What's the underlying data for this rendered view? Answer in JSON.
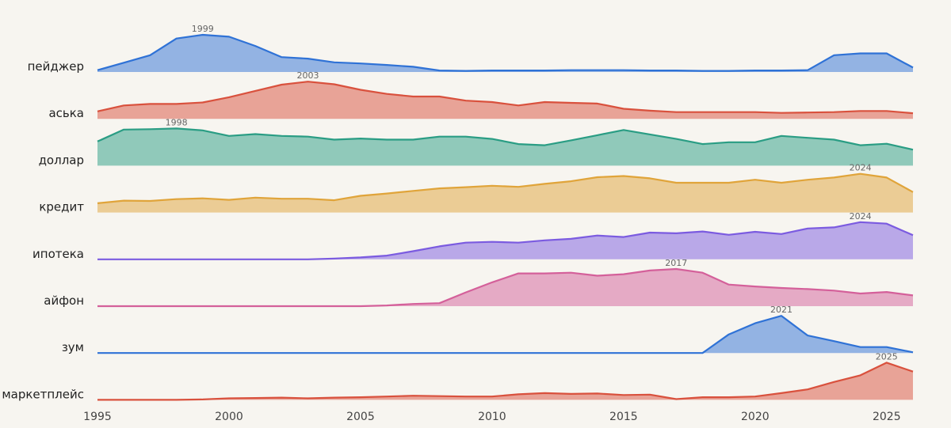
{
  "chart_data": {
    "type": "area",
    "subtype": "ridgeline",
    "title": "",
    "xlabel": "",
    "ylabel": "",
    "xlim": [
      1995,
      2026
    ],
    "ylim_per_row": [
      0,
      100
    ],
    "grid": false,
    "legend": "none",
    "x": [
      1995,
      1996,
      1997,
      1998,
      1999,
      2000,
      2001,
      2002,
      2003,
      2004,
      2005,
      2006,
      2007,
      2008,
      2009,
      2010,
      2011,
      2012,
      2013,
      2014,
      2015,
      2016,
      2017,
      2018,
      2019,
      2020,
      2021,
      2022,
      2023,
      2024,
      2025,
      2026
    ],
    "x_ticks": [
      "1995",
      "2000",
      "2005",
      "2010",
      "2015",
      "2020",
      "2025"
    ],
    "series": [
      {
        "name": "пейджер",
        "color": "#2f72d6",
        "peak_label": "1999",
        "values": [
          5,
          25,
          45,
          90,
          100,
          95,
          70,
          40,
          36,
          26,
          23,
          19,
          14,
          4,
          3,
          4,
          4,
          4,
          5,
          5,
          5,
          4,
          4,
          3,
          3,
          4,
          4,
          5,
          45,
          50,
          50,
          12
        ]
      },
      {
        "name": "аська",
        "color": "#d9513d",
        "peak_label": "2003",
        "values": [
          20,
          36,
          40,
          40,
          44,
          58,
          75,
          92,
          100,
          93,
          78,
          67,
          60,
          60,
          49,
          45,
          36,
          45,
          43,
          41,
          27,
          22,
          18,
          18,
          18,
          18,
          16,
          17,
          18,
          21,
          21,
          15
        ]
      },
      {
        "name": "доллар",
        "color": "#2a9d84",
        "peak_label": "1998",
        "values": [
          65,
          97,
          98,
          100,
          95,
          80,
          85,
          80,
          78,
          70,
          73,
          70,
          70,
          78,
          78,
          72,
          58,
          55,
          68,
          82,
          96,
          84,
          72,
          58,
          63,
          63,
          80,
          75,
          70,
          55,
          59,
          43
        ]
      },
      {
        "name": "кредит",
        "color": "#e0a43a",
        "peak_label": "2024",
        "values": [
          25,
          32,
          31,
          36,
          38,
          34,
          40,
          37,
          37,
          33,
          45,
          51,
          58,
          65,
          68,
          72,
          69,
          77,
          84,
          95,
          98,
          92,
          80,
          80,
          80,
          88,
          80,
          88,
          94,
          104,
          94,
          55
        ]
      },
      {
        "name": "ипотека",
        "color": "#7b5be0",
        "peak_label": "2024",
        "values": [
          0,
          0,
          0,
          0,
          0,
          0,
          0,
          0,
          0,
          2,
          5,
          10,
          22,
          35,
          45,
          47,
          45,
          51,
          55,
          64,
          60,
          72,
          70,
          75,
          66,
          74,
          68,
          83,
          86,
          100,
          96,
          65
        ]
      },
      {
        "name": "айфон",
        "color": "#d4609a",
        "peak_label": "2017",
        "values": [
          0,
          0,
          0,
          0,
          0,
          0,
          0,
          0,
          0,
          0,
          0,
          2,
          6,
          8,
          37,
          64,
          88,
          88,
          90,
          82,
          86,
          96,
          100,
          90,
          58,
          53,
          49,
          46,
          42,
          34,
          38,
          29
        ]
      },
      {
        "name": "зум",
        "color": "#2f72d6",
        "peak_label": "2021",
        "values": [
          0,
          0,
          0,
          0,
          0,
          0,
          0,
          0,
          0,
          0,
          0,
          0,
          0,
          0,
          0,
          0,
          0,
          0,
          0,
          0,
          0,
          0,
          0,
          0,
          50,
          80,
          100,
          47,
          32,
          16,
          16,
          2
        ]
      },
      {
        "name": "маркетплейс",
        "color": "#d9513d",
        "peak_label": "2025",
        "values": [
          0,
          0,
          0,
          0,
          1,
          4,
          5,
          6,
          4,
          6,
          7,
          9,
          11,
          10,
          9,
          9,
          15,
          18,
          16,
          17,
          13,
          14,
          2,
          7,
          7,
          9,
          18,
          28,
          48,
          66,
          100,
          76
        ]
      }
    ]
  }
}
